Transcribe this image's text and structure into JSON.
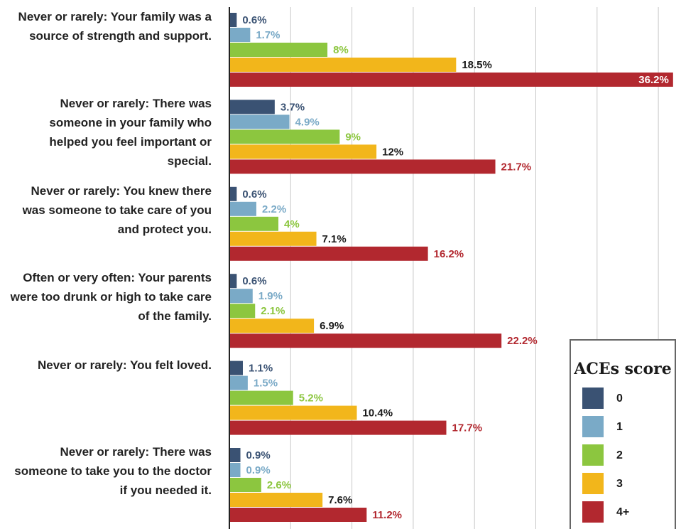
{
  "chart_data": {
    "type": "bar",
    "orientation": "horizontal",
    "categories": [
      "Never or rarely: Your family was a source of strength and support.",
      "Never or rarely: There was someone in your family who helped you feel important or special.",
      "Never or rarely: You knew there was someone to take care of you and protect you.",
      "Often or very often: Your parents were too drunk or high to take care of the family.",
      "Never or rarely: You felt loved.",
      "Never or rarely: There was someone to take you to the doctor if you needed it."
    ],
    "legend_title": "ACEs score",
    "legend_position": "lower right",
    "series": [
      {
        "name": "0",
        "color": "#3a5273",
        "values": [
          0.6,
          3.7,
          0.6,
          0.6,
          1.1,
          0.9
        ],
        "value_labels": [
          "0.6%",
          "3.7%",
          "0.6%",
          "0.6%",
          "1.1%",
          "0.9%"
        ]
      },
      {
        "name": "1",
        "color": "#7aaac7",
        "values": [
          1.7,
          4.9,
          2.2,
          1.9,
          1.5,
          0.9
        ],
        "value_labels": [
          "1.7%",
          "4.9%",
          "2.2%",
          "1.9%",
          "1.5%",
          "0.9%"
        ]
      },
      {
        "name": "2",
        "color": "#8cc63f",
        "values": [
          8,
          9,
          4,
          2.1,
          5.2,
          2.6
        ],
        "value_labels": [
          "8%",
          "9%",
          "4%",
          "2.1%",
          "5.2%",
          "2.6%"
        ]
      },
      {
        "name": "3",
        "color": "#f2b61b",
        "values": [
          18.5,
          12,
          7.1,
          6.9,
          10.4,
          7.6
        ],
        "value_labels": [
          "18.5%",
          "12%",
          "7.1%",
          "6.9%",
          "10.4%",
          "7.6%"
        ]
      },
      {
        "name": "4+",
        "color": "#b2282f",
        "values": [
          36.2,
          21.7,
          16.2,
          22.2,
          17.7,
          11.2
        ],
        "value_labels": [
          "36.2%",
          "21.7%",
          "16.2%",
          "22.2%",
          "17.7%",
          "11.2%"
        ]
      }
    ],
    "xlim": [
      0,
      36.5
    ],
    "xticks": [
      0,
      5,
      10,
      15,
      20,
      25,
      30,
      35
    ],
    "grid": true
  }
}
